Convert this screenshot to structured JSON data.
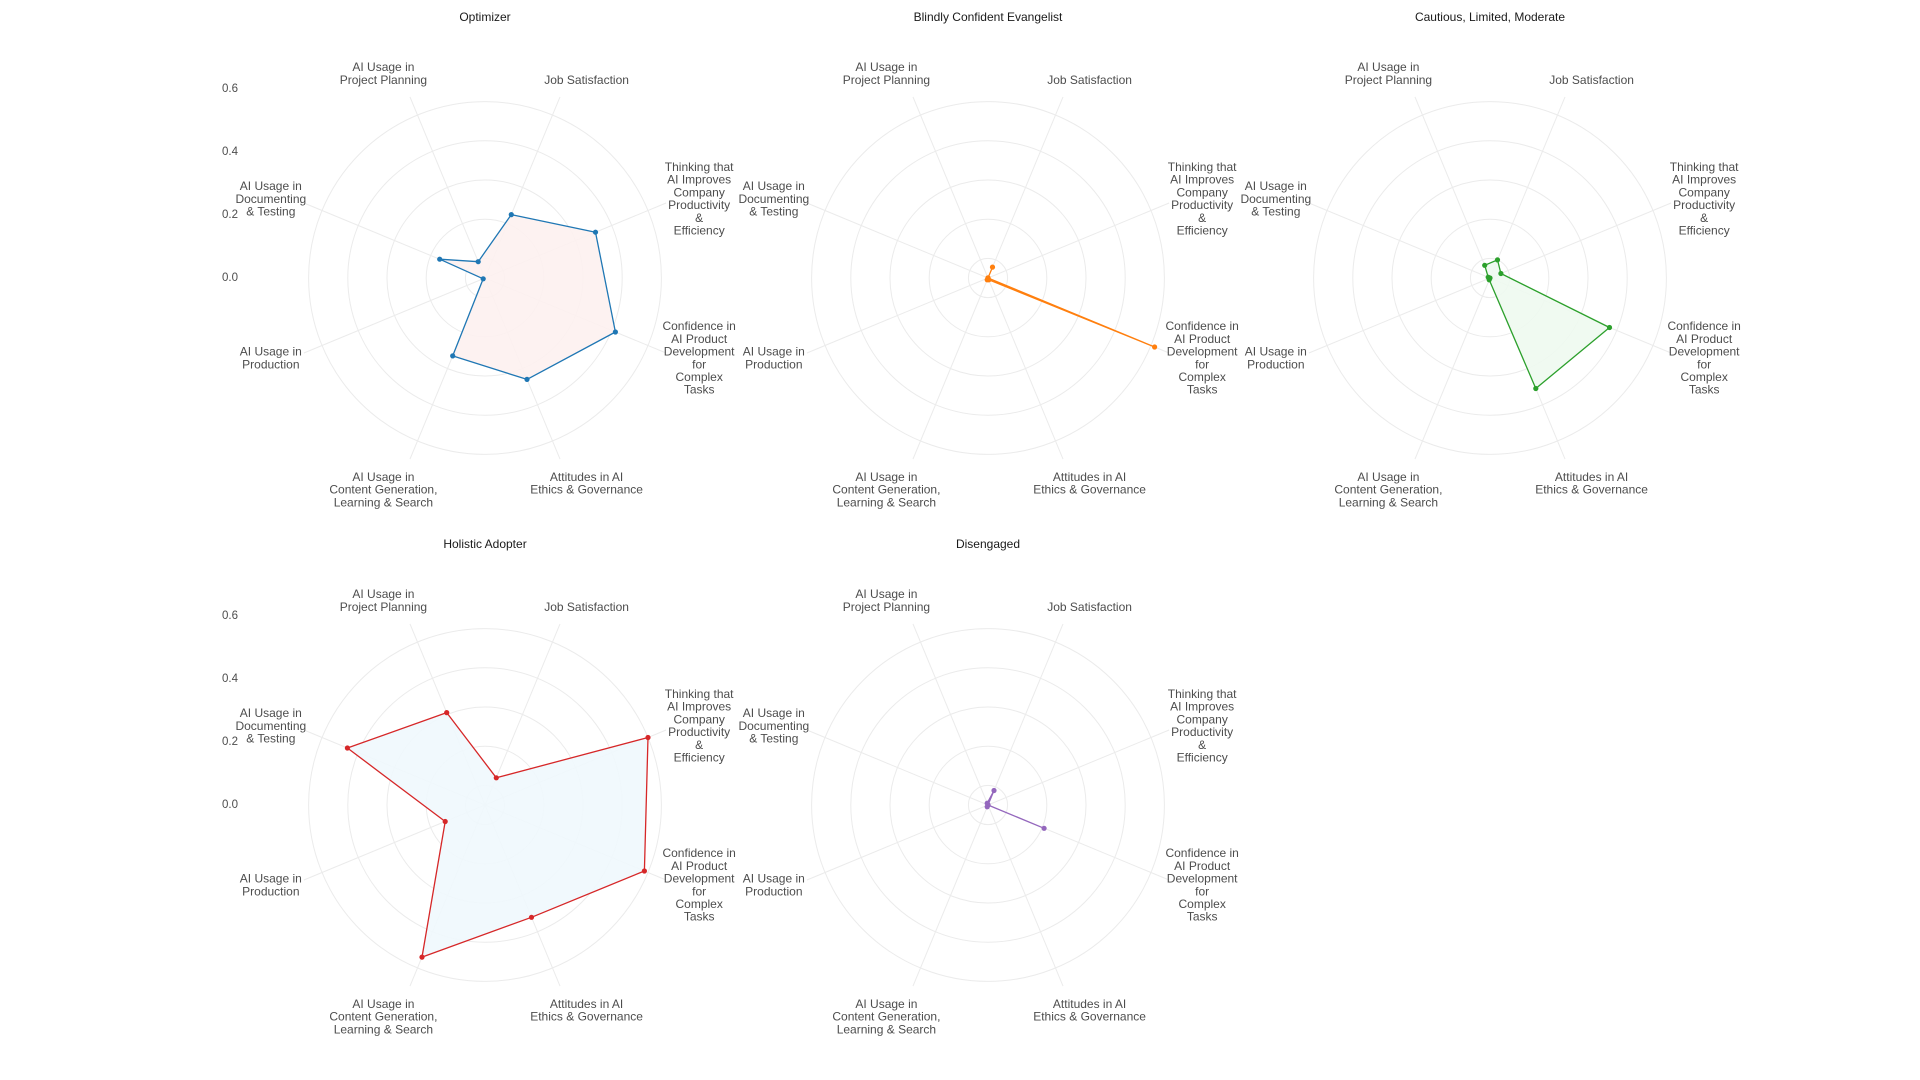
{
  "chart_data": {
    "type": "radar",
    "layout": "grid 2x3",
    "radial_range": [
      -0.3,
      0.7
    ],
    "radial_ticks": [
      0.6,
      0.4,
      0.2,
      0.0
    ],
    "radial_tick_labels": [
      "0.6",
      "0.4",
      "0.2",
      "0.0"
    ],
    "grid": true,
    "axes": [
      [
        "Job Satisfaction"
      ],
      [
        "Thinking that",
        "AI Improves",
        "Company",
        "Productivity",
        "&",
        "Efficiency"
      ],
      [
        "Confidence in",
        "AI Product",
        "Development",
        "for",
        "Complex",
        "Tasks"
      ],
      [
        "Attitudes in AI",
        "Ethics & Governance"
      ],
      [
        "AI Usage in",
        "Content Generation,",
        "Learning & Search"
      ],
      [
        "AI Usage in",
        "Production"
      ],
      [
        "AI Usage in",
        "Documenting",
        "& Testing"
      ],
      [
        "AI Usage in",
        "Project Planning"
      ]
    ],
    "panels": [
      {
        "title": "Optimizer",
        "color": "#1f77b4",
        "fill": "#fdf1f0",
        "values": [
          0.05,
          0.31,
          0.42,
          0.26,
          0.13,
          -0.29,
          -0.05,
          -0.21
        ]
      },
      {
        "title": "Blindly Confident Evangelist",
        "color": "#ff7f0e",
        "fill": "#fff5ea",
        "values": [
          -0.24,
          -0.3,
          0.62,
          -0.29,
          -0.29,
          -0.3,
          -0.3,
          -0.3
        ]
      },
      {
        "title": "Cautious, Limited, Moderate",
        "color": "#2ca02c",
        "fill": "#eefaef",
        "values": [
          -0.2,
          -0.24,
          0.36,
          0.31,
          -0.29,
          -0.3,
          -0.29,
          -0.23
        ]
      },
      {
        "title": "Holistic Adopter",
        "color": "#d62728",
        "fill": "#eff8fd",
        "values": [
          -0.15,
          0.6,
          0.58,
          0.32,
          0.54,
          -0.08,
          0.46,
          0.21
        ]
      },
      {
        "title": "Disengaged",
        "color": "#9467bd",
        "fill": "#f6f1fb",
        "values": [
          -0.22,
          -0.3,
          0.01,
          -0.3,
          -0.29,
          -0.3,
          -0.3,
          -0.29
        ]
      }
    ]
  }
}
